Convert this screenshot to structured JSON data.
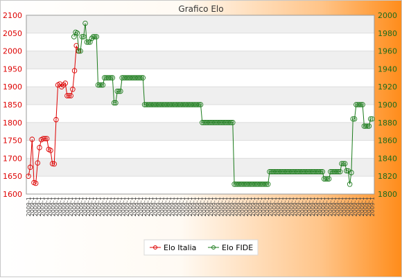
{
  "chart_data": {
    "type": "line",
    "title": "Grafico Elo",
    "left_axis": {
      "ylim": [
        1600,
        2100
      ],
      "ticks": [
        1600,
        1650,
        1700,
        1750,
        1800,
        1850,
        1900,
        1950,
        2000,
        2050,
        2100
      ]
    },
    "right_axis": {
      "ylim": [
        1800,
        2000
      ],
      "ticks": [
        1800,
        1820,
        1840,
        1860,
        1880,
        1900,
        1920,
        1940,
        1960,
        1980,
        2000
      ]
    },
    "x_tick_label": "2009-1",
    "x_count": 99,
    "grid": "horizontal",
    "legend_position": "bottom",
    "colors": {
      "elo_italia": "#dd0000",
      "elo_fide": "#1a7a1a",
      "bg_left": "#ffffff",
      "bg_right": "#ff8c1a",
      "plot_band": "#efefef"
    },
    "series": [
      {
        "name": "Elo Italia",
        "axis": "left",
        "color": "#dd0000",
        "values": [
          1650,
          1675,
          1753,
          1632,
          1630,
          1687,
          1730,
          1752,
          1755,
          1755,
          1755,
          1725,
          1722,
          1685,
          1684,
          1808,
          1905,
          1908,
          1900,
          1905,
          1910,
          1875,
          1875,
          1875,
          1893,
          1945,
          2015,
          2000
        ]
      },
      {
        "name": "Elo FIDE",
        "axis": "right",
        "color": "#1a7a1a",
        "values": [
          1976,
          1981,
          1980,
          1960,
          1960,
          1976,
          1976,
          1991,
          1970,
          1970,
          1970,
          1974,
          1976,
          1976,
          1976,
          1922,
          1922,
          1922,
          1922,
          1930,
          1930,
          1930,
          1930,
          1930,
          1930,
          1902,
          1902,
          1915,
          1915,
          1915,
          1930,
          1930,
          1930,
          1930,
          1930,
          1930,
          1930,
          1930,
          1930,
          1930,
          1930,
          1930,
          1930,
          1930,
          1900,
          1900,
          1900,
          1900,
          1900,
          1900,
          1900,
          1900,
          1900,
          1900,
          1900,
          1900,
          1900,
          1900,
          1900,
          1900,
          1900,
          1900,
          1900,
          1900,
          1900,
          1900,
          1900,
          1900,
          1900,
          1900,
          1900,
          1900,
          1900,
          1900,
          1900,
          1900,
          1900,
          1900,
          1900,
          1900,
          1880,
          1880,
          1880,
          1880,
          1880,
          1880,
          1880,
          1880,
          1880,
          1880,
          1880,
          1880,
          1880,
          1880,
          1880,
          1880,
          1880,
          1880,
          1880,
          1880,
          1811,
          1811,
          1811,
          1811,
          1811,
          1811,
          1811,
          1811,
          1811,
          1811,
          1811,
          1811,
          1811,
          1811,
          1811,
          1811,
          1811,
          1811,
          1811,
          1811,
          1811,
          1811,
          1825,
          1825,
          1825,
          1825,
          1825,
          1825,
          1825,
          1825,
          1825,
          1825,
          1825,
          1825,
          1825,
          1825,
          1825,
          1825,
          1825,
          1825,
          1825,
          1825,
          1825,
          1825,
          1825,
          1825,
          1825,
          1825,
          1825,
          1825,
          1825,
          1825,
          1825,
          1825,
          1825,
          1825,
          1817,
          1817,
          1817,
          1817,
          1825,
          1825,
          1825,
          1825,
          1825,
          1825,
          1825,
          1834,
          1834,
          1834,
          1826,
          1826,
          1811,
          1824,
          1884,
          1884,
          1900,
          1900,
          1900,
          1900,
          1900,
          1876,
          1876,
          1876,
          1876,
          1884,
          1884
        ]
      }
    ]
  }
}
